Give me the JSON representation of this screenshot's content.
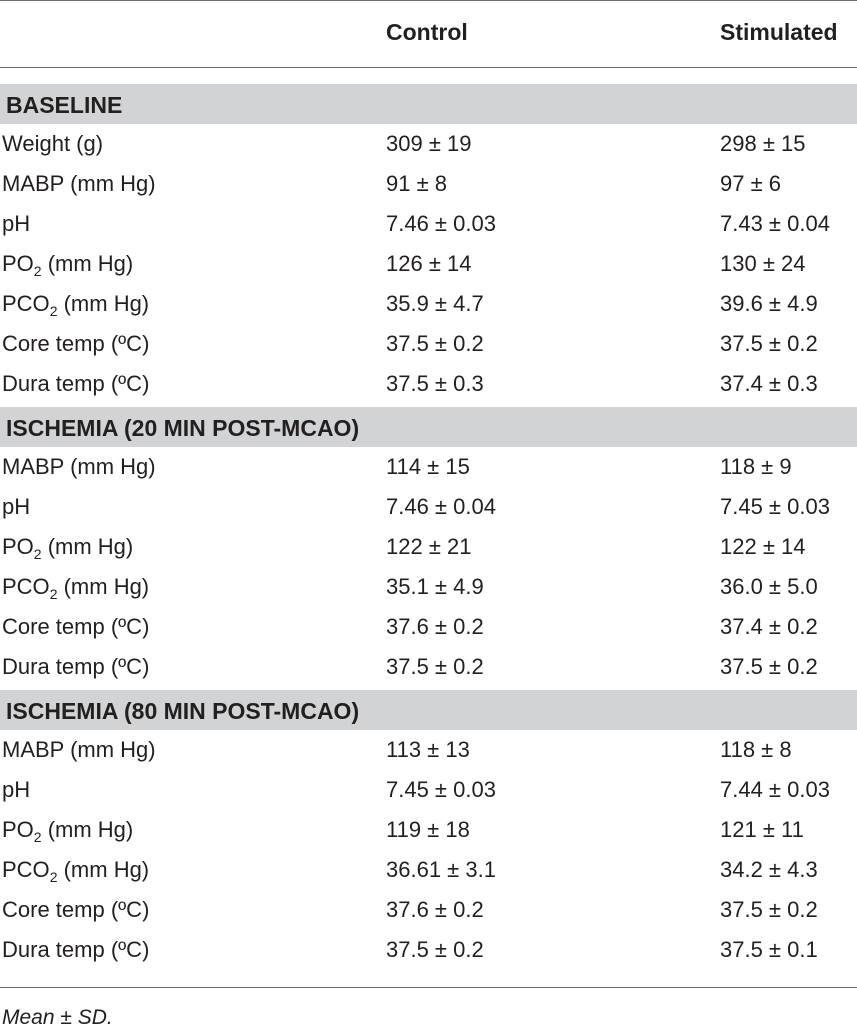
{
  "table": {
    "columns": [
      "",
      "Control",
      "Stimulated"
    ],
    "sections": [
      {
        "title": "BASELINE",
        "rows": [
          {
            "base": "Weight (g)",
            "sub": "",
            "tail": "",
            "control": "309 ± 19",
            "stimulated": "298 ± 15"
          },
          {
            "base": "MABP (mm Hg)",
            "sub": "",
            "tail": "",
            "control": "91 ± 8",
            "stimulated": "97 ± 6"
          },
          {
            "base": "pH",
            "sub": "",
            "tail": "",
            "control": "7.46 ± 0.03",
            "stimulated": "7.43 ± 0.04"
          },
          {
            "base": "PO",
            "sub": "2",
            "tail": " (mm Hg)",
            "control": "126 ± 14",
            "stimulated": "130 ± 24"
          },
          {
            "base": "PCO",
            "sub": "2",
            "tail": " (mm Hg)",
            "control": "35.9 ± 4.7",
            "stimulated": "39.6 ± 4.9"
          },
          {
            "base": "Core temp (ºC)",
            "sub": "",
            "tail": "",
            "control": "37.5 ± 0.2",
            "stimulated": "37.5 ± 0.2"
          },
          {
            "base": "Dura temp (ºC)",
            "sub": "",
            "tail": "",
            "control": "37.5 ± 0.3",
            "stimulated": "37.4 ± 0.3"
          }
        ]
      },
      {
        "title": "ISCHEMIA (20 MIN POST-MCAO)",
        "rows": [
          {
            "base": "MABP (mm Hg)",
            "sub": "",
            "tail": "",
            "control": "114 ± 15",
            "stimulated": "118 ± 9"
          },
          {
            "base": "pH",
            "sub": "",
            "tail": "",
            "control": "7.46 ± 0.04",
            "stimulated": "7.45 ± 0.03"
          },
          {
            "base": "PO",
            "sub": "2",
            "tail": " (mm Hg)",
            "control": "122 ± 21",
            "stimulated": "122 ± 14"
          },
          {
            "base": "PCO",
            "sub": "2",
            "tail": " (mm Hg)",
            "control": "35.1 ± 4.9",
            "stimulated": "36.0 ± 5.0"
          },
          {
            "base": "Core temp (ºC)",
            "sub": "",
            "tail": "",
            "control": "37.6 ± 0.2",
            "stimulated": "37.4 ± 0.2"
          },
          {
            "base": "Dura temp (ºC)",
            "sub": "",
            "tail": "",
            "control": "37.5 ± 0.2",
            "stimulated": "37.5 ± 0.2"
          }
        ]
      },
      {
        "title": "ISCHEMIA (80 MIN POST-MCAO)",
        "rows": [
          {
            "base": "MABP (mm Hg)",
            "sub": "",
            "tail": "",
            "control": "113 ± 13",
            "stimulated": "118 ± 8"
          },
          {
            "base": "pH",
            "sub": "",
            "tail": "",
            "control": "7.45 ± 0.03",
            "stimulated": "7.44 ± 0.03"
          },
          {
            "base": "PO",
            "sub": "2",
            "tail": " (mm Hg)",
            "control": "119 ± 18",
            "stimulated": "121 ± 11"
          },
          {
            "base": "PCO",
            "sub": "2",
            "tail": " (mm Hg)",
            "control": "36.61 ± 3.1",
            "stimulated": "34.2 ± 4.3"
          },
          {
            "base": "Core temp (ºC)",
            "sub": "",
            "tail": "",
            "control": "37.6 ± 0.2",
            "stimulated": "37.5 ± 0.2"
          },
          {
            "base": "Dura temp (ºC)",
            "sub": "",
            "tail": "",
            "control": "37.5 ± 0.2",
            "stimulated": "37.5 ± 0.1"
          }
        ]
      }
    ],
    "footnote": "Mean ± SD."
  }
}
